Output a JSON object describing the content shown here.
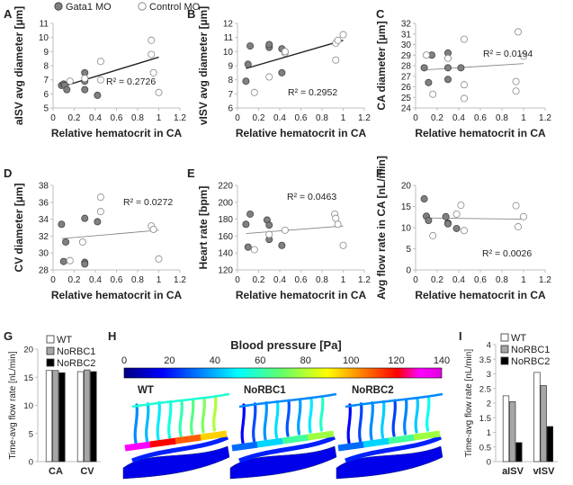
{
  "legend_top": {
    "gata1": "Gata1 MO",
    "control": "Control MO"
  },
  "chart_data": [
    {
      "panel": "A",
      "type": "scatter",
      "xlabel": "Relative hematocrit in CA",
      "ylabel": "aISV avg diameter [µm]",
      "xlim": [
        0,
        1.2
      ],
      "ylim": [
        5,
        11
      ],
      "xticks": [
        "0",
        "0.2",
        "0.4",
        "0.6",
        "0.8",
        "1",
        "1.2"
      ],
      "yticks": [
        "5",
        "6",
        "7",
        "8",
        "9",
        "10",
        "11"
      ],
      "r2": "R² = 0.2726",
      "series": [
        {
          "name": "Gata1 MO",
          "x": [
            0.08,
            0.1,
            0.11,
            0.13,
            0.3,
            0.3,
            0.3,
            0.42
          ],
          "y": [
            6.6,
            6.7,
            6.6,
            6.3,
            7.5,
            6.9,
            6.3,
            5.9
          ]
        },
        {
          "name": "Control MO",
          "x": [
            0.16,
            0.3,
            0.45,
            0.45,
            0.93,
            0.93,
            0.95,
            1.0
          ],
          "y": [
            6.9,
            7.1,
            7.0,
            8.3,
            9.8,
            8.8,
            7.5,
            6.1
          ]
        }
      ],
      "trend": [
        [
          0.08,
          6.5
        ],
        [
          1.0,
          8.6
        ]
      ]
    },
    {
      "panel": "B",
      "type": "scatter",
      "xlabel": "Relative hematocrit in CA",
      "ylabel": "vISV avg diameter [µm]",
      "xlim": [
        0,
        1.2
      ],
      "ylim": [
        6,
        12
      ],
      "xticks": [
        "0",
        "0.2",
        "0.4",
        "0.6",
        "0.8",
        "1",
        "1.2"
      ],
      "yticks": [
        "6",
        "7",
        "8",
        "9",
        "10",
        "11",
        "12"
      ],
      "r2": "R² = 0.2952",
      "series": [
        {
          "name": "Gata1 MO",
          "x": [
            0.08,
            0.1,
            0.12,
            0.3,
            0.3,
            0.3,
            0.42,
            0.42
          ],
          "y": [
            7.9,
            9.1,
            10.4,
            10.4,
            10.3,
            10.5,
            8.5,
            10.2
          ]
        },
        {
          "name": "Control MO",
          "x": [
            0.16,
            0.3,
            0.45,
            0.45,
            0.93,
            0.93,
            0.95,
            1.0
          ],
          "y": [
            7.1,
            8.2,
            9.9,
            10.0,
            9.4,
            10.6,
            10.8,
            11.2
          ]
        }
      ],
      "trend": [
        [
          0.08,
          8.8
        ],
        [
          1.0,
          10.8
        ]
      ]
    },
    {
      "panel": "C",
      "type": "scatter",
      "xlabel": "Relative hematocrit in CA",
      "ylabel": "CA diameter [µm]",
      "xlim": [
        0,
        1.2
      ],
      "ylim": [
        24,
        32
      ],
      "xticks": [
        "0",
        "0.2",
        "0.4",
        "0.6",
        "0.8",
        "1",
        "1.2"
      ],
      "yticks": [
        "24",
        "25",
        "26",
        "27",
        "28",
        "29",
        "30",
        "31",
        "32"
      ],
      "r2": "R² = 0.0194",
      "series": [
        {
          "name": "Gata1 MO",
          "x": [
            0.08,
            0.12,
            0.15,
            0.3,
            0.3,
            0.3,
            0.42
          ],
          "y": [
            27.8,
            26.4,
            29.0,
            29.2,
            27.8,
            26.7,
            27.8
          ]
        },
        {
          "name": "Control MO",
          "x": [
            0.1,
            0.16,
            0.3,
            0.45,
            0.45,
            0.45,
            0.93,
            0.93,
            0.95,
            1.0
          ],
          "y": [
            29.0,
            25.3,
            28.7,
            30.5,
            26.2,
            24.9,
            26.5,
            25.6,
            31.2,
            28.9
          ]
        }
      ],
      "trend": [
        [
          0.08,
          27.6
        ],
        [
          1.0,
          28.2
        ]
      ]
    },
    {
      "panel": "D",
      "type": "scatter",
      "xlabel": "Relative hematocrit in CA",
      "ylabel": "CV diameter [µm]",
      "xlim": [
        0,
        1.2
      ],
      "ylim": [
        28,
        38
      ],
      "xticks": [
        "0",
        "0.2",
        "0.4",
        "0.6",
        "0.8",
        "1",
        "1.2"
      ],
      "yticks": [
        "28",
        "30",
        "32",
        "34",
        "36",
        "38"
      ],
      "r2": "R² = 0.0272",
      "series": [
        {
          "name": "Gata1 MO",
          "x": [
            0.08,
            0.1,
            0.12,
            0.3,
            0.3,
            0.3,
            0.42
          ],
          "y": [
            33.4,
            29.0,
            31.3,
            28.9,
            28.7,
            34.1,
            33.7
          ]
        },
        {
          "name": "Control MO",
          "x": [
            0.16,
            0.28,
            0.45,
            0.45,
            0.93,
            0.95,
            1.0
          ],
          "y": [
            29.1,
            31.3,
            36.6,
            34.9,
            33.2,
            32.8,
            29.3
          ]
        }
      ],
      "trend": [
        [
          0.08,
          31.7
        ],
        [
          1.0,
          32.7
        ]
      ]
    },
    {
      "panel": "E",
      "type": "scatter",
      "xlabel": "Relative hematocrit in CA",
      "ylabel": "Heart rate [bpm]",
      "xlim": [
        0,
        1.2
      ],
      "ylim": [
        120,
        220
      ],
      "xticks": [
        "0",
        "0.2",
        "0.4",
        "0.6",
        "0.8",
        "1",
        "1.2"
      ],
      "yticks": [
        "120",
        "140",
        "160",
        "180",
        "200",
        "220"
      ],
      "r2": "R² = 0.0463",
      "series": [
        {
          "name": "Gata1 MO",
          "x": [
            0.08,
            0.1,
            0.12,
            0.28,
            0.3,
            0.3,
            0.42
          ],
          "y": [
            174,
            147,
            186,
            179,
            173,
            156,
            149
          ]
        },
        {
          "name": "Control MO",
          "x": [
            0.16,
            0.3,
            0.45,
            0.92,
            0.93,
            0.95,
            1.0
          ],
          "y": [
            144,
            162,
            167,
            186,
            181,
            174,
            149
          ]
        }
      ],
      "trend": [
        [
          0.08,
          163
        ],
        [
          1.0,
          172
        ]
      ]
    },
    {
      "panel": "F",
      "type": "scatter",
      "xlabel": "Relative hematocrit in CA",
      "ylabel": "Avg flow rate in CA [nL/min]",
      "xlim": [
        0,
        1.2
      ],
      "ylim": [
        0,
        20
      ],
      "xticks": [
        "0",
        "0.2",
        "0.4",
        "0.6",
        "0.8",
        "1",
        "1.2"
      ],
      "yticks": [
        "0",
        "5",
        "10",
        "15",
        "20"
      ],
      "r2": "R² = 0.0026",
      "series": [
        {
          "name": "Gata1 MO",
          "x": [
            0.08,
            0.1,
            0.12,
            0.28,
            0.3,
            0.3,
            0.38
          ],
          "y": [
            16.8,
            12.7,
            11.7,
            12.6,
            11.1,
            10.9,
            9.8
          ]
        },
        {
          "name": "Control MO",
          "x": [
            0.16,
            0.38,
            0.42,
            0.45,
            0.93,
            0.95,
            1.0
          ],
          "y": [
            8.1,
            13.2,
            15.3,
            9.3,
            15.2,
            10.2,
            12.6
          ]
        }
      ],
      "trend": [
        [
          0.08,
          12.3
        ],
        [
          1.0,
          12.0
        ]
      ]
    },
    {
      "panel": "G",
      "type": "bar",
      "ylabel": "Time-avg flow rate [nL/min]",
      "ylim": [
        0,
        20
      ],
      "yticks": [
        "0",
        "5",
        "10",
        "15",
        "20"
      ],
      "categories": [
        "CA",
        "CV"
      ],
      "series": [
        {
          "name": "WT",
          "values": [
            16.2,
            16.0
          ],
          "color": "#ffffff"
        },
        {
          "name": "NoRBC1",
          "values": [
            16.2,
            16.3
          ],
          "color": "#a6a6a6"
        },
        {
          "name": "NoRBC2",
          "values": [
            15.8,
            16.0
          ],
          "color": "#000000"
        }
      ]
    },
    {
      "panel": "I",
      "type": "bar",
      "ylabel": "Time-avg flow rate [nL/min]",
      "ylim": [
        0,
        4
      ],
      "yticks": [
        "0",
        "0.5",
        "1",
        "1.5",
        "2",
        "2.5",
        "3",
        "3.5",
        "4"
      ],
      "categories": [
        "aISV",
        "vISV"
      ],
      "series": [
        {
          "name": "WT",
          "values": [
            2.25,
            3.05
          ],
          "color": "#ffffff"
        },
        {
          "name": "NoRBC1",
          "values": [
            2.05,
            2.6
          ],
          "color": "#a6a6a6"
        },
        {
          "name": "NoRBC2",
          "values": [
            0.65,
            1.2
          ],
          "color": "#000000"
        }
      ]
    }
  ],
  "panel_h": {
    "letter": "H",
    "title": "Blood pressure [Pa]",
    "colorbar_ticks": [
      "0",
      "20",
      "40",
      "60",
      "80",
      "100",
      "120",
      "140"
    ],
    "labels": [
      "WT",
      "NoRBC1",
      "NoRBC2"
    ]
  },
  "colors": {
    "gata1": "#808080",
    "control": "#ffffff",
    "trend": "#222222",
    "axis": "#bfbfbf"
  }
}
